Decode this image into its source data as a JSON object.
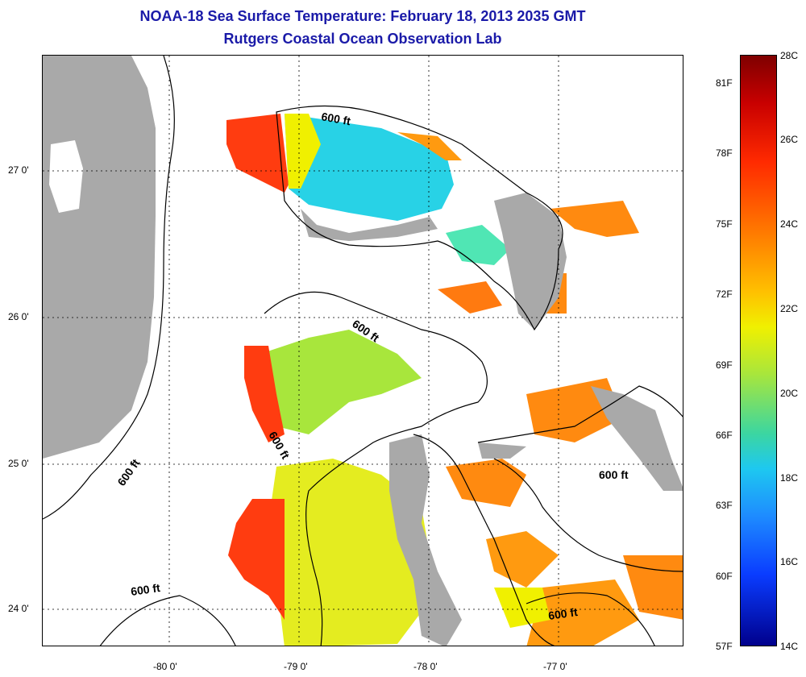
{
  "title": "NOAA-18 Sea Surface Temperature:  February 18, 2013 2035 GMT",
  "subtitle": "Rutgers Coastal Ocean Observation Lab",
  "axes": {
    "lat_labels": [
      "27 0'",
      "26 0'",
      "25 0'",
      "24 0'"
    ],
    "lon_labels": [
      "-80 0'",
      "-79 0'",
      "-78 0'",
      "-77 0'"
    ]
  },
  "contour_label": "600 ft",
  "colorbar": {
    "celsius": [
      "28C",
      "26C",
      "24C",
      "22C",
      "20C",
      "18C",
      "16C",
      "14C"
    ],
    "fahrenheit": [
      "81F",
      "78F",
      "75F",
      "72F",
      "69F",
      "66F",
      "63F",
      "60F",
      "57F"
    ]
  },
  "colors": {
    "title": "#1a1aa8",
    "land": "#a9a9a9"
  }
}
